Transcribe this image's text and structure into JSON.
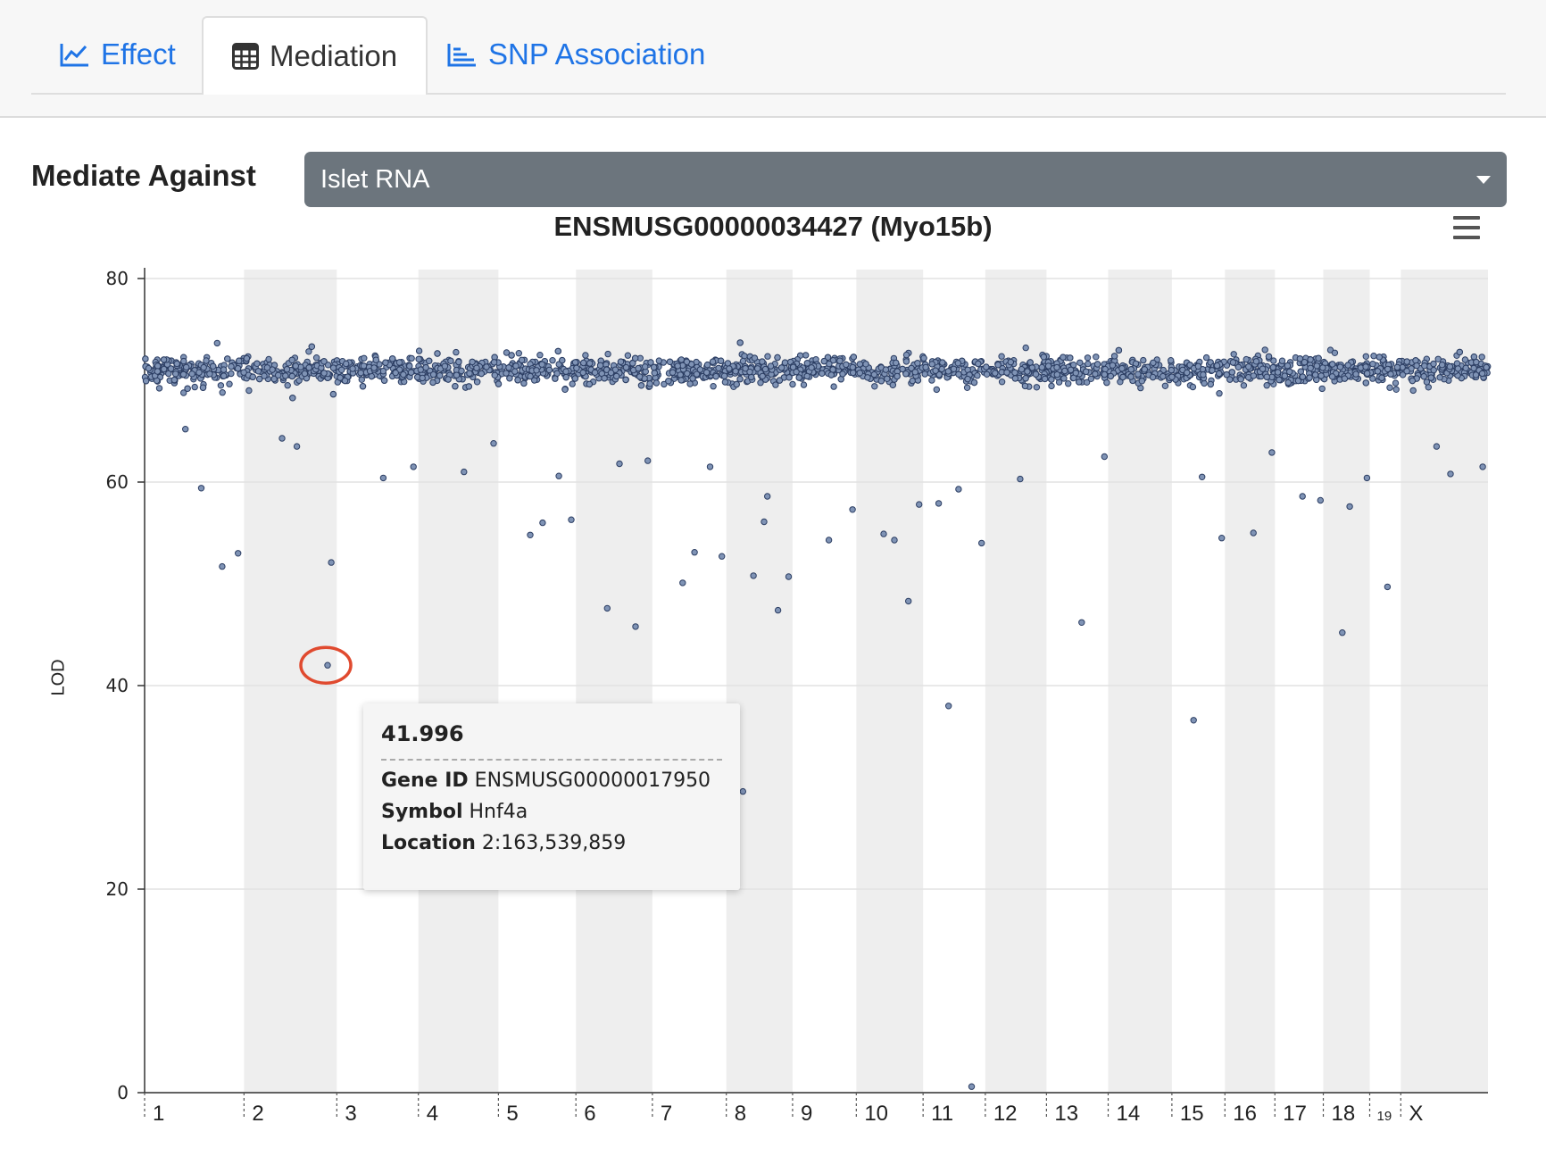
{
  "tabs": [
    {
      "label": "Effect",
      "icon": "line-chart-icon",
      "active": false
    },
    {
      "label": "Mediation",
      "icon": "table-icon",
      "active": true
    },
    {
      "label": "SNP Association",
      "icon": "bar-chart-icon",
      "active": false
    }
  ],
  "mediate": {
    "label": "Mediate Against",
    "selected": "Islet RNA"
  },
  "colors": {
    "link": "#1f74e6",
    "point_fill": "#7f93b5",
    "point_stroke": "#2c3e63",
    "band": "#eeeeee",
    "highlight": "#e04a2f"
  },
  "chart_data": {
    "type": "scatter",
    "title": "ENSMUSG00000034427 (Myo15b)",
    "ylabel": "LOD",
    "ylim": [
      0,
      80
    ],
    "yticks": [
      0,
      20,
      40,
      60,
      80
    ],
    "chromosomes": [
      "1",
      "2",
      "3",
      "4",
      "5",
      "6",
      "7",
      "8",
      "9",
      "10",
      "11",
      "12",
      "13",
      "14",
      "15",
      "16",
      "17",
      "18",
      "19",
      "X"
    ],
    "chromosome_lengths_mb": [
      195,
      182,
      160,
      157,
      152,
      150,
      145,
      130,
      125,
      131,
      122,
      120,
      121,
      125,
      104,
      98,
      95,
      91,
      61,
      171
    ],
    "bulk_points": {
      "lod_center": 71,
      "lod_spread_range": [
        62,
        79
      ]
    },
    "outliers": [
      {
        "chr": "1",
        "lod": 59.4
      },
      {
        "chr": "1",
        "lod": 53.0
      },
      {
        "chr": "1",
        "lod": 65.2
      },
      {
        "chr": "1",
        "lod": 51.7
      },
      {
        "chr": "2",
        "lod": 63.5
      },
      {
        "chr": "2",
        "lod": 52.1
      },
      {
        "chr": "2",
        "lod": 64.3
      },
      {
        "chr": "2",
        "lod": 41.996
      },
      {
        "chr": "3",
        "lod": 60.4
      },
      {
        "chr": "3",
        "lod": 61.5
      },
      {
        "chr": "4",
        "lod": 61.0
      },
      {
        "chr": "4",
        "lod": 63.8
      },
      {
        "chr": "5",
        "lod": 56.0
      },
      {
        "chr": "5",
        "lod": 56.3
      },
      {
        "chr": "5",
        "lod": 54.8
      },
      {
        "chr": "5",
        "lod": 60.6
      },
      {
        "chr": "6",
        "lod": 61.8
      },
      {
        "chr": "6",
        "lod": 62.1
      },
      {
        "chr": "6",
        "lod": 47.6
      },
      {
        "chr": "6",
        "lod": 45.8
      },
      {
        "chr": "7",
        "lod": 53.1
      },
      {
        "chr": "7",
        "lod": 52.7
      },
      {
        "chr": "7",
        "lod": 50.1
      },
      {
        "chr": "7",
        "lod": 61.5
      },
      {
        "chr": "8",
        "lod": 56.1
      },
      {
        "chr": "8",
        "lod": 50.7
      },
      {
        "chr": "8",
        "lod": 50.8
      },
      {
        "chr": "8",
        "lod": 47.4
      },
      {
        "chr": "8",
        "lod": 29.6
      },
      {
        "chr": "8",
        "lod": 58.6
      },
      {
        "chr": "9",
        "lod": 54.3
      },
      {
        "chr": "9",
        "lod": 57.3
      },
      {
        "chr": "10",
        "lod": 54.3
      },
      {
        "chr": "10",
        "lod": 57.8
      },
      {
        "chr": "10",
        "lod": 54.9
      },
      {
        "chr": "10",
        "lod": 48.3
      },
      {
        "chr": "11",
        "lod": 59.3
      },
      {
        "chr": "11",
        "lod": 54.0
      },
      {
        "chr": "11",
        "lod": 38.0
      },
      {
        "chr": "11",
        "lod": 0.6
      },
      {
        "chr": "11",
        "lod": 57.9
      },
      {
        "chr": "12",
        "lod": 60.3
      },
      {
        "chr": "13",
        "lod": 46.2
      },
      {
        "chr": "13",
        "lod": 62.5
      },
      {
        "chr": "15",
        "lod": 60.5
      },
      {
        "chr": "15",
        "lod": 54.5
      },
      {
        "chr": "15",
        "lod": 36.6
      },
      {
        "chr": "16",
        "lod": 55.0
      },
      {
        "chr": "16",
        "lod": 62.9
      },
      {
        "chr": "17",
        "lod": 58.6
      },
      {
        "chr": "17",
        "lod": 58.2
      },
      {
        "chr": "18",
        "lod": 57.6
      },
      {
        "chr": "18",
        "lod": 60.4
      },
      {
        "chr": "18",
        "lod": 45.2
      },
      {
        "chr": "19",
        "lod": 49.7
      },
      {
        "chr": "X",
        "lod": 60.8
      },
      {
        "chr": "X",
        "lod": 61.5
      },
      {
        "chr": "X",
        "lod": 63.5
      }
    ],
    "highlighted_point": {
      "chr": "2",
      "lod": 41.996
    }
  },
  "tooltip": {
    "value": "41.996",
    "gene_id_label": "Gene ID",
    "gene_id": "ENSMUSG00000017950",
    "symbol_label": "Symbol",
    "symbol": "Hnf4a",
    "location_label": "Location",
    "location": "2:163,539,859"
  }
}
